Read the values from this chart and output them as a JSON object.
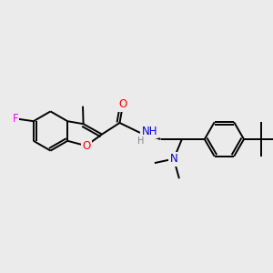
{
  "background_color": "#ebebeb",
  "atom_colors": {
    "C": "#000000",
    "N": "#0000cd",
    "O": "#ff0000",
    "F": "#ff00ff",
    "H": "#808080"
  },
  "bond_color": "#000000",
  "line_width": 1.4
}
